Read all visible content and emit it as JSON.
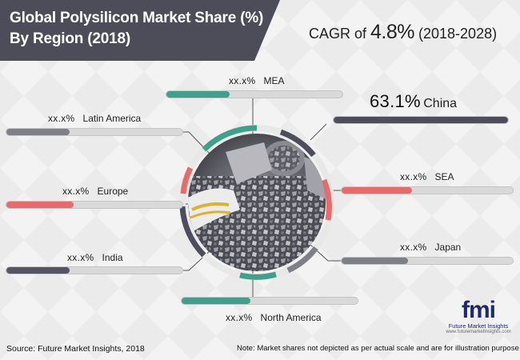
{
  "header": {
    "title_line1": "Global Polysilicon Market Share (%)",
    "title_line2": "By Region (2018)",
    "cagr_prefix": "CAGR of ",
    "cagr_value": "4.8%",
    "cagr_period": " (2018-2028)"
  },
  "chart_data": {
    "type": "bar",
    "title": "Global Polysilicon Market Share (%) By Region (2018)",
    "categories": [
      "China",
      "MEA",
      "Latin America",
      "Europe",
      "India",
      "North America",
      "SEA",
      "Japan"
    ],
    "series": [
      {
        "values": [
          63.1,
          null,
          null,
          null,
          null,
          null,
          null,
          null
        ],
        "labels": [
          "63.1%",
          "xx.x%",
          "xx.x%",
          "xx.x%",
          "xx.x%",
          "xx.x%",
          "xx.x%",
          "xx.x%"
        ]
      }
    ],
    "bar_fill_fraction": [
      1.0,
      0.36,
      0.36,
      0.38,
      0.36,
      0.39,
      0.41,
      0.39
    ],
    "bar_colors": [
      "#4d4d5e",
      "#3fa08c",
      "#7f7f87",
      "#e86a6a",
      "#545463",
      "#3fa08c",
      "#e86a6a",
      "#7f7f87"
    ],
    "unit": "%"
  },
  "footer": {
    "source": "Source: Future Market Insights, 2018",
    "note": "Note: Market shares not depicted as per actual scale and are for illustration purpose only"
  },
  "logo": {
    "mark": "fmi",
    "name": "Future Market Insights",
    "url": "www.futuremarketinsights.com"
  },
  "colors": {
    "banner": "#4d4d5a",
    "teal": "#3fa08c",
    "red": "#e86a6a",
    "dark": "#4d4d5e",
    "grey": "#7f7f87"
  }
}
